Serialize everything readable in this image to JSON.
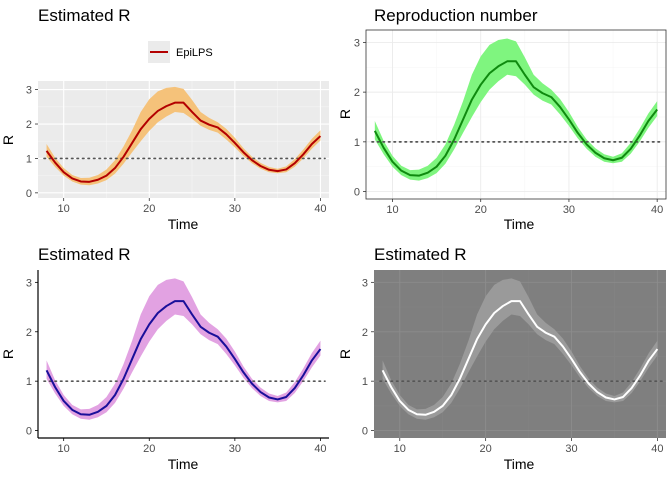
{
  "chart_data": [
    {
      "type": "line",
      "title": "Estimated R",
      "xlabel": "Time",
      "ylabel": "R",
      "xlim": [
        7,
        41
      ],
      "ylim": [
        -0.15,
        3.25
      ],
      "x_ticks": [
        10,
        20,
        30,
        40
      ],
      "y_ticks": [
        0,
        1,
        2,
        3
      ],
      "reference_line": 1,
      "theme": "grey",
      "legend": {
        "position": "top",
        "entries": [
          "EpiLPS"
        ]
      },
      "series": [
        {
          "name": "EpiLPS",
          "color": "#b30000",
          "band_color": "#f5c27a"
        }
      ]
    },
    {
      "type": "line",
      "title": "Reproduction number",
      "xlabel": "Time",
      "ylabel": "R",
      "xlim": [
        7,
        41
      ],
      "ylim": [
        -0.15,
        3.25
      ],
      "x_ticks": [
        10,
        20,
        30,
        40
      ],
      "y_ticks": [
        0,
        1,
        2,
        3
      ],
      "reference_line": 1,
      "theme": "bw",
      "series": [
        {
          "color": "#0f8a0f",
          "band_color": "#7ff57f"
        }
      ]
    },
    {
      "type": "line",
      "title": "Estimated R",
      "xlabel": "Time",
      "ylabel": "R",
      "xlim": [
        7,
        41
      ],
      "ylim": [
        -0.15,
        3.25
      ],
      "x_ticks": [
        10,
        20,
        30,
        40
      ],
      "y_ticks": [
        0,
        1,
        2,
        3
      ],
      "reference_line": 1,
      "theme": "classic",
      "series": [
        {
          "color": "#1a0f9a",
          "band_color": "#e2a2e2"
        }
      ]
    },
    {
      "type": "line",
      "title": "Estimated R",
      "xlabel": "Time",
      "ylabel": "R",
      "xlim": [
        7,
        41
      ],
      "ylim": [
        -0.15,
        3.25
      ],
      "x_ticks": [
        10,
        20,
        30,
        40
      ],
      "y_ticks": [
        0,
        1,
        2,
        3
      ],
      "reference_line": 1,
      "theme": "dark",
      "series": [
        {
          "color": "#ffffff",
          "band_color": "#9a9a9a"
        }
      ]
    }
  ],
  "shared": {
    "x": [
      8,
      9,
      10,
      11,
      12,
      13,
      14,
      15,
      16,
      17,
      18,
      19,
      20,
      21,
      22,
      23,
      24,
      25,
      26,
      27,
      28,
      29,
      30,
      31,
      32,
      33,
      34,
      35,
      36,
      37,
      38,
      39,
      40
    ],
    "r": [
      1.22,
      0.88,
      0.6,
      0.42,
      0.33,
      0.32,
      0.38,
      0.5,
      0.72,
      1.05,
      1.45,
      1.85,
      2.15,
      2.38,
      2.52,
      2.62,
      2.62,
      2.35,
      2.1,
      1.98,
      1.9,
      1.7,
      1.45,
      1.18,
      0.95,
      0.78,
      0.67,
      0.63,
      0.68,
      0.86,
      1.12,
      1.42,
      1.65
    ],
    "lower": [
      1.05,
      0.75,
      0.5,
      0.33,
      0.24,
      0.22,
      0.27,
      0.37,
      0.56,
      0.85,
      1.18,
      1.5,
      1.8,
      2.05,
      2.22,
      2.35,
      2.32,
      2.15,
      1.95,
      1.83,
      1.75,
      1.55,
      1.32,
      1.07,
      0.86,
      0.7,
      0.6,
      0.57,
      0.6,
      0.76,
      1.0,
      1.28,
      1.52
    ],
    "upper": [
      1.42,
      1.02,
      0.72,
      0.52,
      0.43,
      0.44,
      0.52,
      0.68,
      0.95,
      1.35,
      1.82,
      2.35,
      2.72,
      2.95,
      3.05,
      3.08,
      3.02,
      2.7,
      2.35,
      2.18,
      2.05,
      1.86,
      1.6,
      1.3,
      1.05,
      0.87,
      0.75,
      0.7,
      0.77,
      0.98,
      1.26,
      1.57,
      1.82
    ]
  }
}
